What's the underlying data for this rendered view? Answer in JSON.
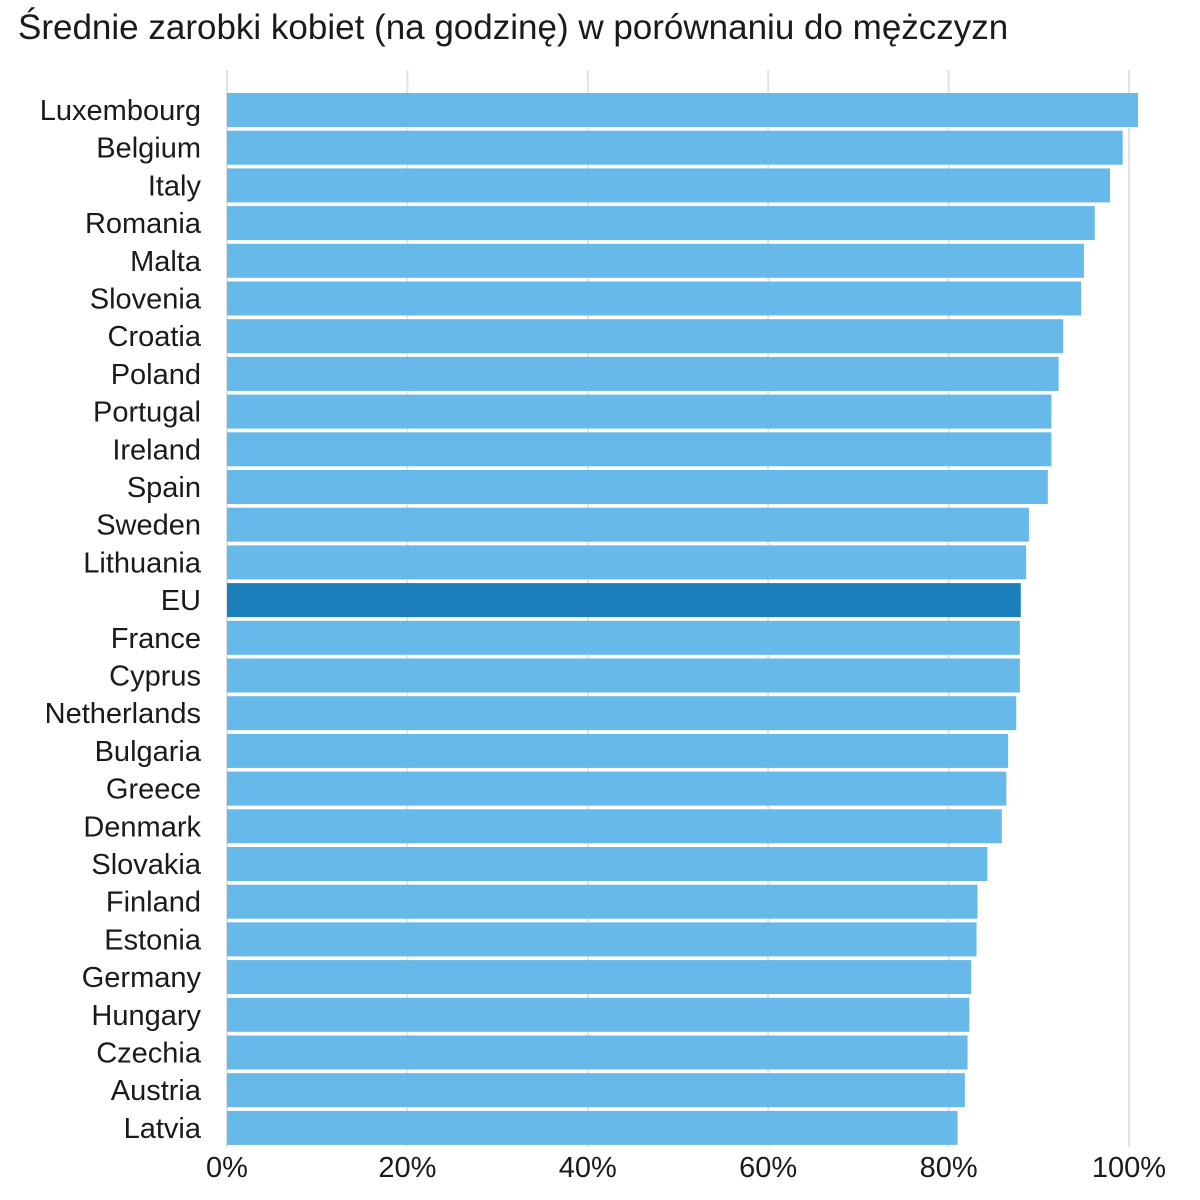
{
  "title": "Średnie zarobki kobiet (na godzinę) w porównaniu do mężczyzn",
  "chart_data": {
    "type": "bar",
    "orientation": "horizontal",
    "title": "Średnie zarobki kobiet (na godzinę) w porównaniu do mężczyzn",
    "xlabel": "",
    "ylabel": "",
    "xlim": [
      0,
      100
    ],
    "x_ticks": [
      "0%",
      "20%",
      "40%",
      "60%",
      "80%",
      "100%"
    ],
    "grid": "vertical",
    "categories": [
      "Luxembourg",
      "Belgium",
      "Italy",
      "Romania",
      "Malta",
      "Slovenia",
      "Croatia",
      "Poland",
      "Portugal",
      "Ireland",
      "Spain",
      "Sweden",
      "Lithuania",
      "EU",
      "France",
      "Cyprus",
      "Netherlands",
      "Bulgaria",
      "Greece",
      "Denmark",
      "Slovakia",
      "Finland",
      "Estonia",
      "Germany",
      "Hungary",
      "Czechia",
      "Austria",
      "Latvia"
    ],
    "values": [
      101.0,
      99.3,
      97.9,
      96.2,
      95.0,
      94.7,
      92.7,
      92.2,
      91.4,
      91.4,
      91.0,
      88.9,
      88.6,
      88.0,
      87.9,
      87.9,
      87.5,
      86.6,
      86.4,
      85.9,
      84.3,
      83.2,
      83.1,
      82.5,
      82.3,
      82.1,
      81.8,
      81.0
    ],
    "highlight": "EU",
    "colors": {
      "bar": "#66b9e8",
      "highlight": "#1a7fbb",
      "grid": "#e2e2e2"
    }
  }
}
